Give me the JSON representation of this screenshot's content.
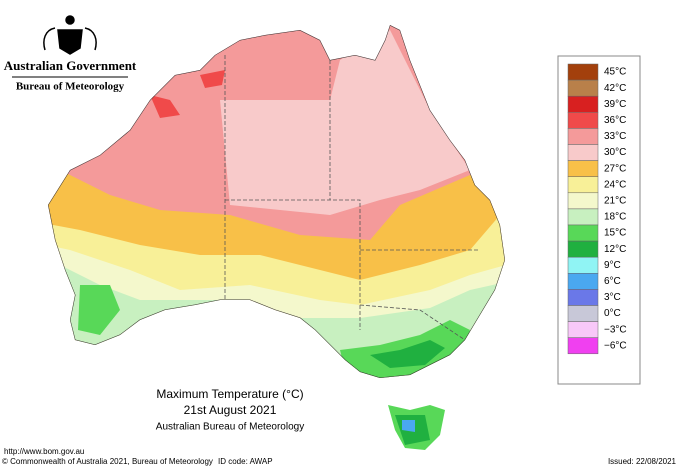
{
  "header": {
    "title": "Australian Government",
    "subtitle": "Bureau of Meteorology"
  },
  "legend": {
    "items": [
      {
        "label": "45°C",
        "color": "#a3400c"
      },
      {
        "label": "42°C",
        "color": "#b9804a"
      },
      {
        "label": "39°C",
        "color": "#d82020"
      },
      {
        "label": "36°C",
        "color": "#f04a4a"
      },
      {
        "label": "33°C",
        "color": "#f49a9a"
      },
      {
        "label": "30°C",
        "color": "#f8caca"
      },
      {
        "label": "27°C",
        "color": "#f8c048"
      },
      {
        "label": "24°C",
        "color": "#f8f098"
      },
      {
        "label": "21°C",
        "color": "#f4f8cc"
      },
      {
        "label": "18°C",
        "color": "#c8f0c0"
      },
      {
        "label": "15°C",
        "color": "#58d858"
      },
      {
        "label": "12°C",
        "color": "#20b040"
      },
      {
        "label": "9°C",
        "color": "#90f4f4"
      },
      {
        "label": "6°C",
        "color": "#4aa8f0"
      },
      {
        "label": "3°C",
        "color": "#6a78e8"
      },
      {
        "label": "0°C",
        "color": "#c8c8d8"
      },
      {
        "label": "−3°C",
        "color": "#f8c8f8"
      },
      {
        "label": "−6°C",
        "color": "#f040f0"
      }
    ]
  },
  "caption": {
    "title": "Maximum Temperature (°C)",
    "date": "21st August 2021",
    "source": "Australian Bureau of Meteorology"
  },
  "footer": {
    "url": "http://www.bom.gov.au",
    "copyright": "© Commonwealth of Australia 2021, Bureau of Meteorology",
    "id_code": "ID code: AWAP",
    "issued": "Issued: 22/08/2021"
  }
}
